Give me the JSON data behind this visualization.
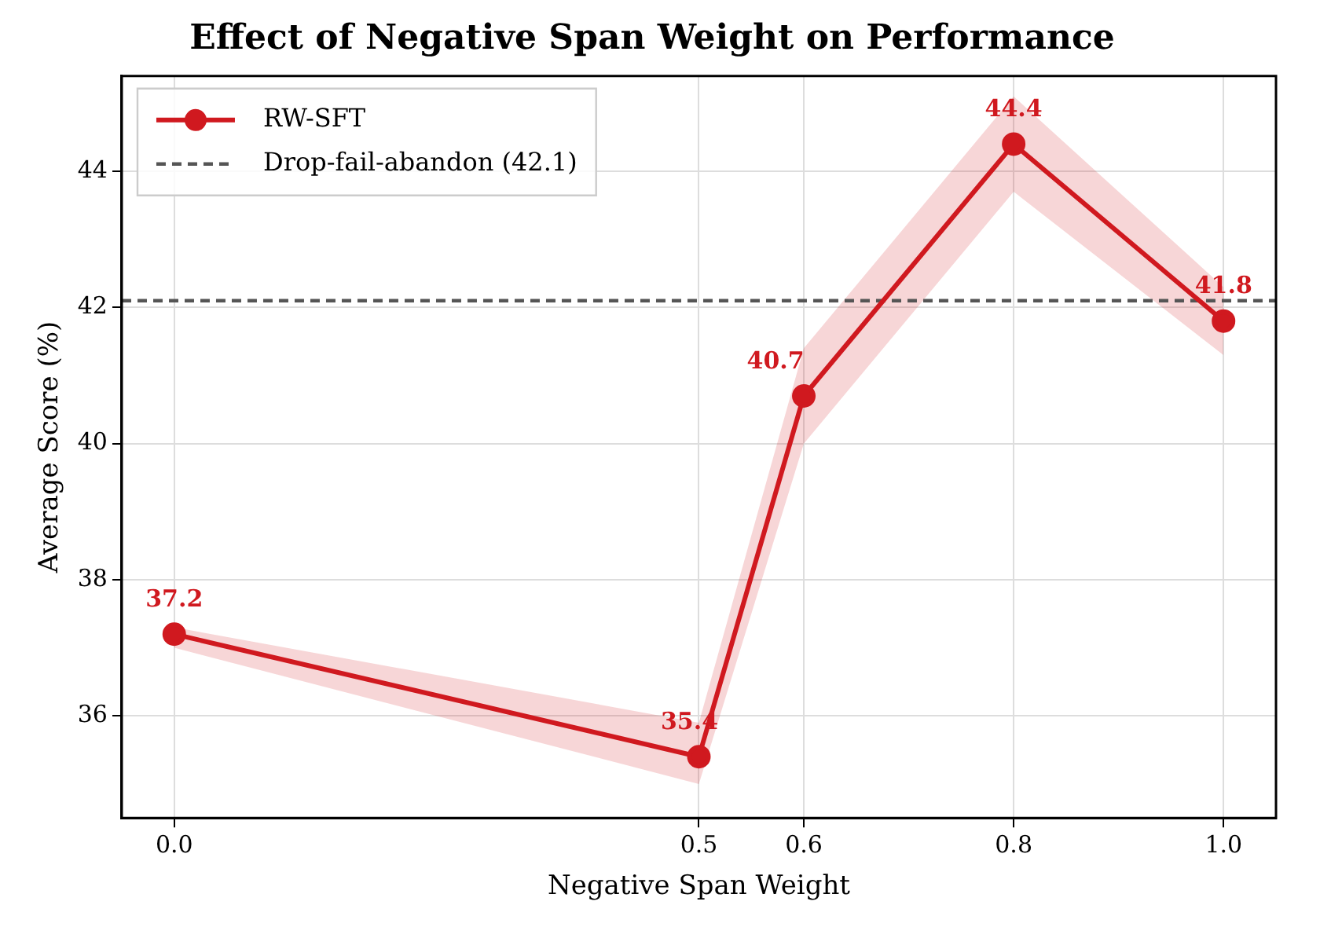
{
  "chart_data": {
    "type": "line",
    "title": "Effect of Negative Span Weight on Performance",
    "xlabel": "Negative Span Weight",
    "ylabel": "Average Score (%)",
    "x": [
      0.0,
      0.5,
      0.6,
      0.8,
      1.0
    ],
    "series": [
      {
        "name": "RW-SFT",
        "color": "#d0191f",
        "values": [
          37.2,
          35.4,
          40.7,
          44.4,
          41.8
        ],
        "lower": [
          37.0,
          35.0,
          40.0,
          43.7,
          41.3
        ],
        "upper": [
          37.3,
          35.9,
          41.4,
          45.1,
          42.3
        ]
      }
    ],
    "xlim": [
      -0.05,
      1.05
    ],
    "ylim": [
      34.5,
      45.4
    ],
    "xticks": [
      {
        "value": 0,
        "label": "0.0"
      },
      {
        "value": 0.5,
        "label": "0.5"
      },
      {
        "value": 0.6,
        "label": "0.6"
      },
      {
        "value": 0.8,
        "label": "0.8"
      },
      {
        "value": 1,
        "label": "1.0"
      }
    ],
    "yticks": [
      36,
      38,
      40,
      42,
      44
    ],
    "ref_lines": [
      {
        "axis": "y",
        "value": 42.1,
        "label": "Drop-fail-abandon (42.1)",
        "color": "#555555",
        "line_style": "dashed"
      }
    ],
    "grid": true,
    "legend": "top left",
    "marker": "circle",
    "line_style": "solid",
    "data_labels": true
  }
}
